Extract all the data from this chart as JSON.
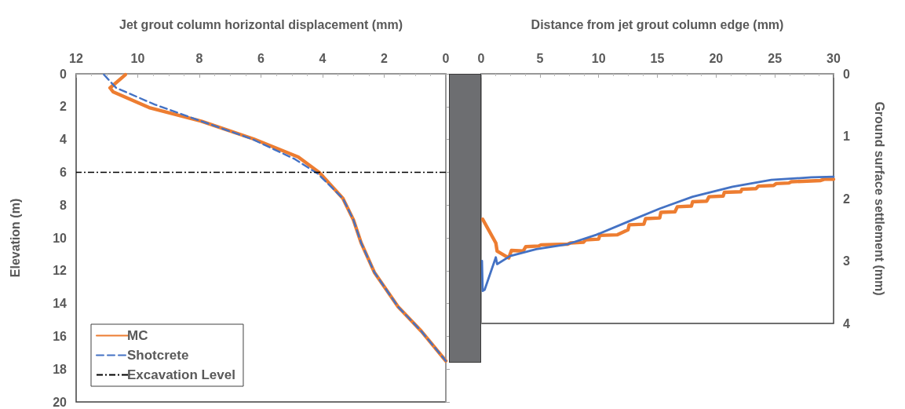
{
  "chart_data": [
    {
      "type": "line",
      "xlabel": "Jet grout column horizontal displacement (mm)",
      "ylabel": "Elevation (m)",
      "xlim": [
        12,
        0
      ],
      "xticks": [
        12,
        10,
        8,
        6,
        4,
        2,
        0
      ],
      "ylim": [
        20,
        0
      ],
      "yticks": [
        0,
        2,
        4,
        6,
        8,
        10,
        12,
        14,
        16,
        18,
        20
      ],
      "grid": false,
      "legend": "bottom left",
      "marker": "none",
      "series": [
        {
          "name": "MC",
          "color": "#ed7d31",
          "line_style": "solid",
          "x": [
            10.4,
            10.9,
            10.8,
            9.63,
            7.92,
            6.24,
            4.79,
            4.1,
            3.34,
            3.0,
            2.75,
            2.32,
            1.55,
            0.79,
            0
          ],
          "values": [
            0.05,
            0.86,
            1.1,
            2.06,
            2.9,
            3.97,
            5.07,
            6.03,
            7.6,
            8.9,
            10.3,
            12.1,
            14.2,
            15.7,
            17.5
          ]
        },
        {
          "name": "Shotcrete",
          "color": "#4472c4",
          "line_style": "dashed",
          "x": [
            11.1,
            10.7,
            9.45,
            7.92,
            6.3,
            4.9,
            4.15,
            3.34,
            3.0,
            2.75,
            2.32,
            1.55,
            0.79,
            0
          ],
          "values": [
            0.05,
            0.86,
            1.87,
            2.9,
            3.97,
            5.2,
            6.1,
            7.6,
            8.9,
            10.3,
            12.1,
            14.2,
            15.7,
            17.5
          ]
        }
      ],
      "ref_lines": [
        {
          "axis": "y",
          "value": 6,
          "label": "Excavation Level",
          "color": "#000000",
          "line_style": "dashdot"
        }
      ]
    },
    {
      "type": "line",
      "xlabel": "Distance from jet grout column edge (mm)",
      "y2label": "Ground surface settlement (mm)",
      "xlim": [
        0,
        30
      ],
      "xticks": [
        0,
        5,
        10,
        15,
        20,
        25,
        30
      ],
      "y2lim": [
        4,
        0
      ],
      "y2ticks": [
        0,
        1,
        2,
        3,
        4
      ],
      "grid": false,
      "legend": false,
      "marker": "none",
      "series": [
        {
          "color": "#ed7d31",
          "axis": "y2",
          "line_style": "solid",
          "x": [
            0.13,
            1.25,
            1.36,
            2.35,
            2.58,
            3.58,
            3.8,
            4.9,
            5.1,
            7.37,
            7.6,
            8.7,
            8.9,
            10.0,
            10.1,
            11.6,
            12.5,
            12.6,
            13.85,
            14.0,
            15.2,
            15.3,
            16.5,
            16.7,
            17.9,
            18.0,
            19.2,
            19.4,
            20.6,
            20.7,
            22.1,
            22.2,
            23.4,
            23.6,
            24.9,
            25.1,
            26.2,
            26.4,
            28.9,
            29.2,
            30
          ],
          "values": [
            2.33,
            2.71,
            2.84,
            2.95,
            2.83,
            2.84,
            2.77,
            2.76,
            2.74,
            2.73,
            2.71,
            2.7,
            2.66,
            2.65,
            2.59,
            2.58,
            2.5,
            2.42,
            2.41,
            2.32,
            2.31,
            2.22,
            2.21,
            2.13,
            2.12,
            2.05,
            2.04,
            1.97,
            1.96,
            1.9,
            1.89,
            1.85,
            1.84,
            1.8,
            1.79,
            1.76,
            1.75,
            1.73,
            1.71,
            1.69,
            1.69
          ]
        },
        {
          "color": "#4472c4",
          "axis": "y2",
          "line_style": "solid",
          "x": [
            0.07,
            0.13,
            0.3,
            1.25,
            1.36,
            2.47,
            4.7,
            7.37,
            9.8,
            12.5,
            15.2,
            18.0,
            21.4,
            24.7,
            28.1,
            30
          ],
          "values": [
            3.0,
            3.48,
            3.46,
            2.94,
            3.05,
            2.92,
            2.81,
            2.73,
            2.58,
            2.37,
            2.16,
            1.97,
            1.81,
            1.7,
            1.66,
            1.65
          ]
        }
      ]
    }
  ]
}
